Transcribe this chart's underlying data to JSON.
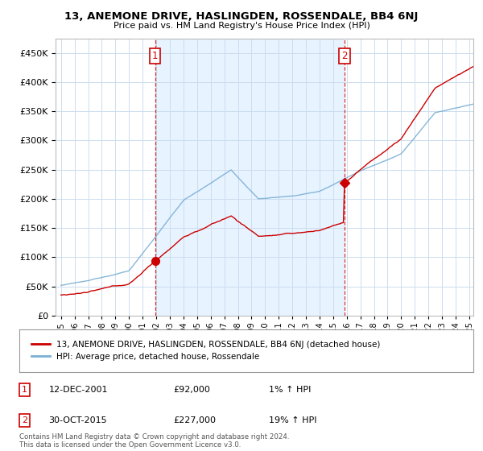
{
  "title": "13, ANEMONE DRIVE, HASLINGDEN, ROSSENDALE, BB4 6NJ",
  "subtitle": "Price paid vs. HM Land Registry's House Price Index (HPI)",
  "legend_line1": "13, ANEMONE DRIVE, HASLINGDEN, ROSSENDALE, BB4 6NJ (detached house)",
  "legend_line2": "HPI: Average price, detached house, Rossendale",
  "sale1_label": "1",
  "sale1_date_str": "12-DEC-2001",
  "sale1_price_str": "£92,000",
  "sale1_hpi_str": "1% ↑ HPI",
  "sale1_year": 2001.92,
  "sale1_price": 92000,
  "sale2_label": "2",
  "sale2_date_str": "30-OCT-2015",
  "sale2_price_str": "£227,000",
  "sale2_hpi_str": "19% ↑ HPI",
  "sale2_year": 2015.83,
  "sale2_price": 227000,
  "hpi_color": "#7bafd4",
  "price_color": "#cc0000",
  "fill_color": "#ddeeff",
  "marker_color": "#cc0000",
  "ylim": [
    0,
    475000
  ],
  "xlim_start": 1994.6,
  "xlim_end": 2025.3,
  "footer": "Contains HM Land Registry data © Crown copyright and database right 2024.\nThis data is licensed under the Open Government Licence v3.0.",
  "background_color": "#ffffff",
  "grid_color": "#ccddee"
}
